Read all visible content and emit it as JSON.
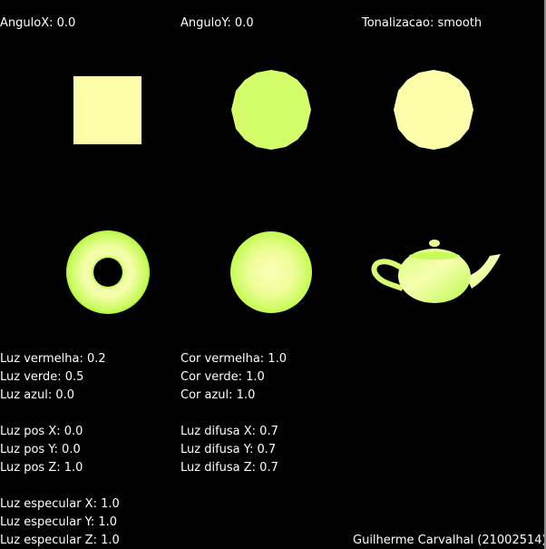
{
  "header": {
    "angulo_x": "AnguloX: 0.0",
    "angulo_y": "AnguloY: 0.0",
    "tonalizacao": "Tonalizacao: smooth"
  },
  "scene": {
    "objects": [
      {
        "name": "cube-shape",
        "color": "#fefea8"
      },
      {
        "name": "sphere-flat",
        "color": "#d4fd6a"
      },
      {
        "name": "sphere-light",
        "color": "#fcfeaa"
      },
      {
        "name": "torus-shape",
        "color": "#d8fd78"
      },
      {
        "name": "sphere-smooth",
        "color": "#e8fd90"
      },
      {
        "name": "teapot-shape",
        "color": "#d8fd78"
      }
    ]
  },
  "light": {
    "vermelha": "Luz vermelha: 0.2",
    "verde": "Luz verde: 0.5",
    "azul": "Luz azul: 0.0",
    "pos_x": "Luz pos X: 0.0",
    "pos_y": "Luz pos Y: 0.0",
    "pos_z": "Luz pos Z: 1.0",
    "especular_x": "Luz especular X: 1.0",
    "especular_y": "Luz especular Y: 1.0",
    "especular_z": "Luz especular Z: 1.0"
  },
  "material": {
    "cor_vermelha": "Cor vermelha: 1.0",
    "cor_verde": "Cor verde: 1.0",
    "cor_azul": "Cor azul: 1.0",
    "difusa_x": "Luz difusa X: 0.7",
    "difusa_y": "Luz difusa Y: 0.7",
    "difusa_z": "Luz difusa Z: 0.7"
  },
  "footer": {
    "author": "Guilherme Carvalhal (21002514)"
  }
}
